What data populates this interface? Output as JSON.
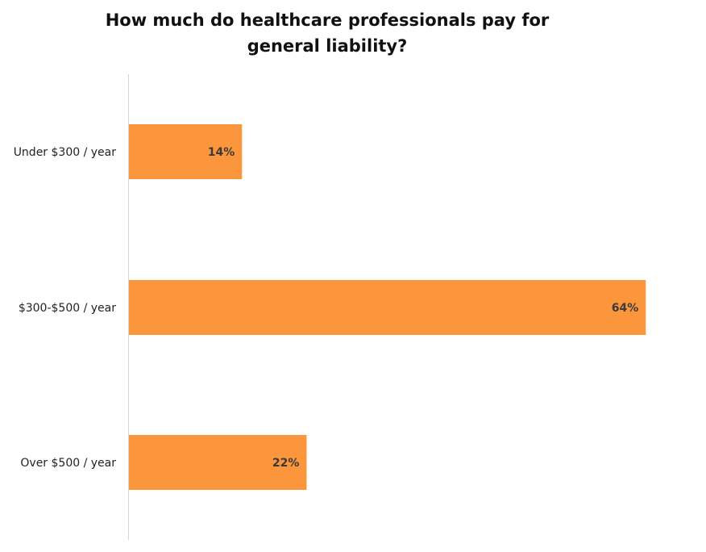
{
  "chart_data": {
    "type": "bar",
    "orientation": "horizontal",
    "title_lines": [
      "How much do healthcare professionals pay for",
      "general liability?"
    ],
    "categories": [
      "Under $300 / year",
      "$300-$500 / year",
      "Over $500 / year"
    ],
    "values": [
      14,
      64,
      22
    ],
    "data_labels": [
      "14%",
      "64%",
      "22%"
    ],
    "xlim": [
      0,
      100
    ],
    "bar_color": "#fb963c",
    "axis_line_color": "#d6d6d6",
    "grid": false,
    "legend": "none"
  }
}
